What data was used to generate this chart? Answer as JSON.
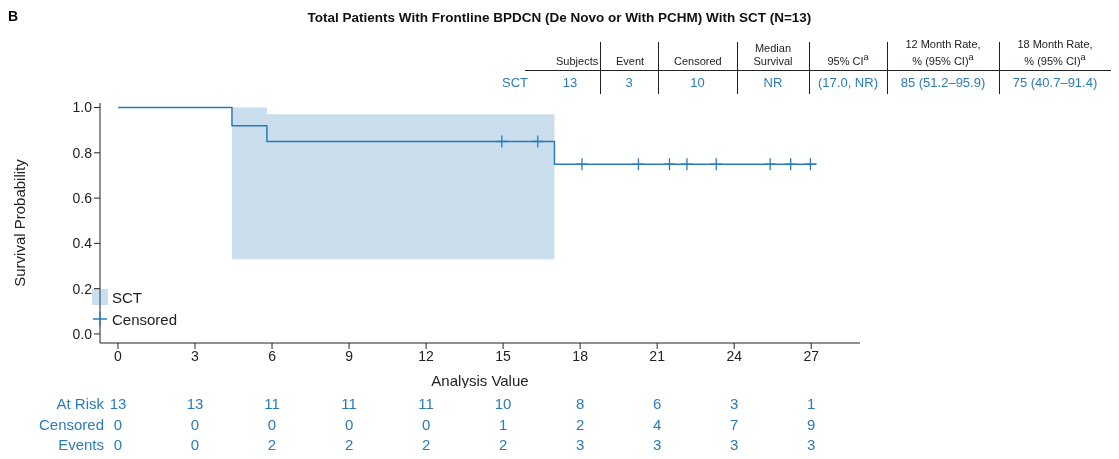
{
  "chart_data": {
    "type": "step",
    "title": "Total Patients With Frontline BPDCN (De Novo or With PCHM) With SCT (N=13)",
    "xlabel": "Analysis Value",
    "ylabel": "Survival Probability",
    "series": [
      {
        "name": "SCT",
        "color": "#2b7bba",
        "x": [
          0,
          4.44,
          5.8,
          17.0,
          27.2
        ],
        "values": [
          1.0,
          0.92,
          0.85,
          0.75,
          0.75
        ],
        "lower": [
          null,
          0.33,
          0.33,
          0.33,
          null
        ],
        "upper": [
          null,
          1.0,
          0.97,
          0.97,
          null
        ]
      },
      {
        "name": "Censored",
        "type": "scatter",
        "marker": "cross",
        "color": "#2b7bba",
        "x": [
          14.95,
          16.35,
          18.07,
          20.27,
          21.48,
          22.16,
          23.3,
          25.4,
          26.2,
          26.97
        ],
        "values": [
          0.85,
          0.85,
          0.75,
          0.75,
          0.75,
          0.75,
          0.75,
          0.75,
          0.75,
          0.75
        ]
      }
    ],
    "xlim": [
      -0.7,
      28.9
    ],
    "xticks": [
      0,
      3,
      6,
      9,
      12,
      15,
      18,
      21,
      24,
      27
    ],
    "ylim": [
      -0.04,
      1.02
    ],
    "yticks": [
      {
        "value": 0,
        "label": "0.0"
      },
      {
        "value": 0.2,
        "label": "0.2"
      },
      {
        "value": 0.4,
        "label": "0.4"
      },
      {
        "value": 0.6,
        "label": "0.6"
      },
      {
        "value": 0.8,
        "label": "0.8"
      },
      {
        "value": 1,
        "label": "1.0"
      }
    ],
    "grid": false,
    "legend": "bottom left",
    "annotations": [
      "B",
      "Subjects",
      "Event",
      "Censored",
      "Median Survival",
      "95% CI$^{a}$",
      "12 Month Rate, % (95% CI)$^{a}$",
      "18 Month Rate, % (95% CI)$^{a}$",
      "SCT",
      "13",
      "3",
      "10",
      "NR",
      "(17.0, NR)",
      "85 (51.2–95.9)",
      "75 (40.7–91.4)",
      "At Risk",
      "Censored",
      "Events",
      "13",
      "13",
      "11",
      "11",
      "11",
      "10",
      "8",
      "6",
      "3",
      "1",
      "0",
      "0",
      "0",
      "0",
      "0",
      "1",
      "2",
      "4",
      "7",
      "9",
      "0",
      "0",
      "2",
      "2",
      "2",
      "2",
      "3",
      "3",
      "3",
      "3"
    ]
  }
}
